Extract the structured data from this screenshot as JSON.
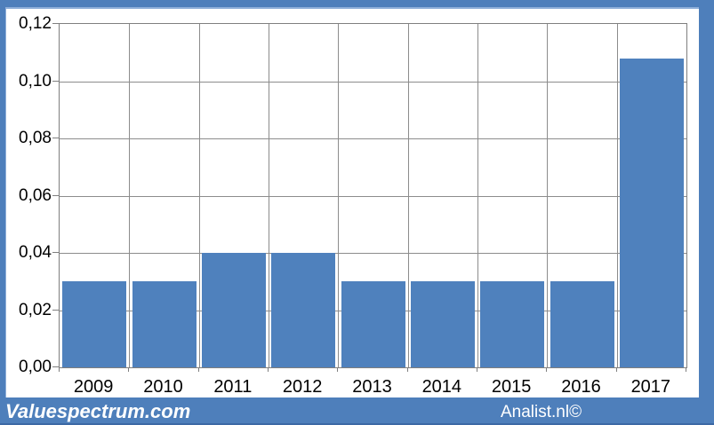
{
  "chart_data": {
    "type": "bar",
    "categories": [
      "2009",
      "2010",
      "2011",
      "2012",
      "2013",
      "2014",
      "2015",
      "2016",
      "2017"
    ],
    "values": [
      0.03,
      0.03,
      0.04,
      0.04,
      0.03,
      0.03,
      0.03,
      0.03,
      0.108
    ],
    "title": "",
    "xlabel": "",
    "ylabel": "",
    "ylim": [
      0,
      0.12
    ],
    "ytick_step": 0.02,
    "ytick_labels": [
      "0,00",
      "0,02",
      "0,04",
      "0,06",
      "0,08",
      "0,10",
      "0,12"
    ],
    "grid": true,
    "legend": false,
    "bar_color": "#4f81bd"
  },
  "footer": {
    "brand_left": "Valuespectrum.com",
    "brand_right": "Analist.nl©"
  },
  "colors": {
    "frame_blue": "#4e7fbb",
    "frame_accent": "#8fafd9",
    "bar_blue": "#4f81bd",
    "gridline_gray": "#8c8c8c",
    "axis_gray": "#7f7f7f",
    "plot_bg": "#ffffff",
    "footer_text": "#ffffff",
    "label_text": "#000000"
  }
}
